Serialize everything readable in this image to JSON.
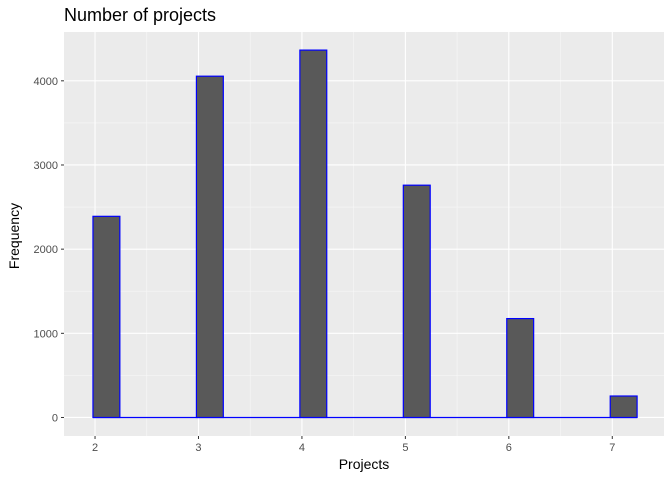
{
  "chart_data": {
    "type": "bar",
    "title": "Number of projects",
    "xlabel": "Projects",
    "ylabel": "Frequency",
    "x": [
      2,
      3,
      4,
      5,
      6,
      7
    ],
    "values": [
      2390,
      4055,
      4365,
      2760,
      1175,
      255
    ],
    "x_ticks": [
      2,
      3,
      4,
      5,
      6,
      7
    ],
    "y_ticks": [
      0,
      1000,
      2000,
      3000,
      4000
    ],
    "xlim": [
      1.7,
      7.5
    ],
    "ylim": [
      -220,
      4580
    ],
    "bar_fill": "#595959",
    "bar_outline": "#0000ff",
    "panel_background": "#ebebeb",
    "grid": true
  }
}
